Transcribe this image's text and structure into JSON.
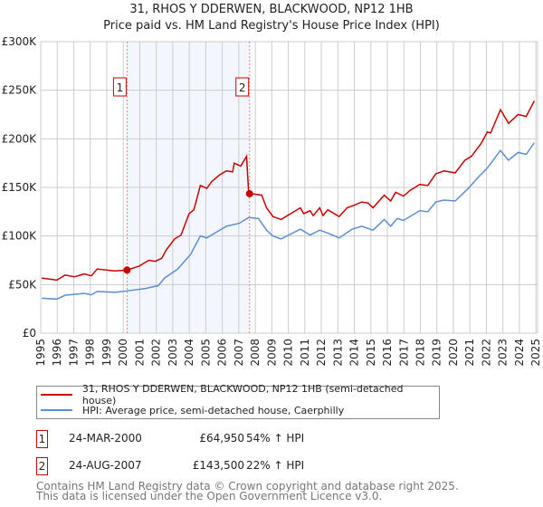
{
  "chart_data": {
    "type": "line",
    "title": "31, RHOS Y DDERWEN, BLACKWOOD, NP12 1HB",
    "subtitle": "Price paid vs. HM Land Registry's House Price Index (HPI)",
    "xlim": [
      1995,
      2025.1
    ],
    "ylim": [
      0,
      300000
    ],
    "yticks": [
      {
        "v": 0,
        "label": "£0"
      },
      {
        "v": 50000,
        "label": "£50K"
      },
      {
        "v": 100000,
        "label": "£100K"
      },
      {
        "v": 150000,
        "label": "£150K"
      },
      {
        "v": 200000,
        "label": "£200K"
      },
      {
        "v": 250000,
        "label": "£250K"
      },
      {
        "v": 300000,
        "label": "£300K"
      }
    ],
    "xticks": [
      "1995",
      "1996",
      "1997",
      "1998",
      "1999",
      "2000",
      "2001",
      "2002",
      "2003",
      "2004",
      "2005",
      "2006",
      "2007",
      "2008",
      "2009",
      "2010",
      "2011",
      "2012",
      "2013",
      "2014",
      "2015",
      "2016",
      "2017",
      "2018",
      "2019",
      "2020",
      "2021",
      "2022",
      "2023",
      "2024",
      "2025"
    ],
    "grid": true,
    "shaded_range": [
      2000.23,
      2007.65
    ],
    "series": [
      {
        "name": "31, RHOS Y DDERWEN, BLACKWOOD, NP12 1HB (semi-detached house)",
        "color": "#cc0000",
        "points": [
          [
            1995.06,
            56700
          ],
          [
            1995.98,
            54600
          ],
          [
            1996.47,
            59800
          ],
          [
            1997.05,
            58000
          ],
          [
            1997.64,
            61000
          ],
          [
            1998.07,
            59000
          ],
          [
            1998.42,
            66000
          ],
          [
            1999.49,
            64000
          ],
          [
            2000.23,
            64950
          ],
          [
            2000.96,
            69000
          ],
          [
            2001.55,
            75000
          ],
          [
            2001.94,
            74000
          ],
          [
            2002.33,
            77000
          ],
          [
            2002.62,
            86000
          ],
          [
            2003.11,
            97000
          ],
          [
            2003.5,
            101000
          ],
          [
            2003.99,
            123000
          ],
          [
            2004.28,
            127000
          ],
          [
            2004.67,
            152000
          ],
          [
            2005.06,
            149000
          ],
          [
            2005.36,
            156000
          ],
          [
            2005.85,
            163000
          ],
          [
            2006.24,
            167000
          ],
          [
            2006.63,
            166000
          ],
          [
            2006.72,
            175000
          ],
          [
            2007.12,
            172000
          ],
          [
            2007.47,
            182000
          ],
          [
            2007.6,
            143500
          ],
          [
            2008,
            143000
          ],
          [
            2008.39,
            142000
          ],
          [
            2008.68,
            129000
          ],
          [
            2009.07,
            120000
          ],
          [
            2009.56,
            117000
          ],
          [
            2010.14,
            123000
          ],
          [
            2010.73,
            129000
          ],
          [
            2010.93,
            123000
          ],
          [
            2011.32,
            126000
          ],
          [
            2011.51,
            121000
          ],
          [
            2011.9,
            129000
          ],
          [
            2012.1,
            121000
          ],
          [
            2012.39,
            127000
          ],
          [
            2013.08,
            120000
          ],
          [
            2013.56,
            129000
          ],
          [
            2014.05,
            132000
          ],
          [
            2014.44,
            135000
          ],
          [
            2014.83,
            134000
          ],
          [
            2015.13,
            129000
          ],
          [
            2015.81,
            142000
          ],
          [
            2016.2,
            136000
          ],
          [
            2016.5,
            145000
          ],
          [
            2016.98,
            141000
          ],
          [
            2017.38,
            147000
          ],
          [
            2017.96,
            153000
          ],
          [
            2018.45,
            152000
          ],
          [
            2018.94,
            164000
          ],
          [
            2019.43,
            167000
          ],
          [
            2020.11,
            165000
          ],
          [
            2020.7,
            178000
          ],
          [
            2021.09,
            182000
          ],
          [
            2021.67,
            195000
          ],
          [
            2022.06,
            207000
          ],
          [
            2022.26,
            206000
          ],
          [
            2022.85,
            230000
          ],
          [
            2023.34,
            216000
          ],
          [
            2023.92,
            225000
          ],
          [
            2024.41,
            223000
          ],
          [
            2024.9,
            239000
          ]
        ]
      },
      {
        "name": "HPI: Average price, semi-detached house, Caerphilly",
        "color": "#5b8fd4",
        "points": [
          [
            1995.06,
            36000
          ],
          [
            1995.98,
            35000
          ],
          [
            1996.47,
            39000
          ],
          [
            1997.64,
            41000
          ],
          [
            1998.07,
            39500
          ],
          [
            1998.42,
            43000
          ],
          [
            1999.49,
            42000
          ],
          [
            2000.23,
            43500
          ],
          [
            2001.35,
            46000
          ],
          [
            2002.13,
            49000
          ],
          [
            2002.52,
            57000
          ],
          [
            2003.3,
            66000
          ],
          [
            2004.08,
            81000
          ],
          [
            2004.67,
            100000
          ],
          [
            2005.06,
            98000
          ],
          [
            2005.65,
            104000
          ],
          [
            2006.24,
            110000
          ],
          [
            2007.02,
            113000
          ],
          [
            2007.6,
            119000
          ],
          [
            2008.19,
            118000
          ],
          [
            2008.68,
            106000
          ],
          [
            2009.07,
            100000
          ],
          [
            2009.56,
            97000
          ],
          [
            2010.14,
            102000
          ],
          [
            2010.73,
            107000
          ],
          [
            2011.32,
            101000
          ],
          [
            2011.9,
            106000
          ],
          [
            2012.39,
            103000
          ],
          [
            2013.08,
            98000
          ],
          [
            2013.86,
            107000
          ],
          [
            2014.44,
            110000
          ],
          [
            2015.13,
            106000
          ],
          [
            2015.81,
            117000
          ],
          [
            2016.2,
            110000
          ],
          [
            2016.59,
            118000
          ],
          [
            2016.98,
            116000
          ],
          [
            2017.96,
            126000
          ],
          [
            2018.45,
            125000
          ],
          [
            2018.94,
            135000
          ],
          [
            2019.43,
            137000
          ],
          [
            2020.11,
            136000
          ],
          [
            2020.9,
            149000
          ],
          [
            2021.48,
            160000
          ],
          [
            2022.06,
            170000
          ],
          [
            2022.85,
            188000
          ],
          [
            2023.34,
            178000
          ],
          [
            2023.92,
            186000
          ],
          [
            2024.41,
            184000
          ],
          [
            2024.9,
            196000
          ]
        ]
      }
    ],
    "sales": [
      {
        "label": "1",
        "x": 2000.23,
        "y": 64950
      },
      {
        "label": "2",
        "x": 2007.65,
        "y": 143500
      }
    ]
  },
  "legend": {
    "property": "31, RHOS Y DDERWEN, BLACKWOOD, NP12 1HB (semi-detached house)",
    "hpi": "HPI: Average price, semi-detached house, Caerphilly"
  },
  "transactions": [
    {
      "num": "1",
      "date": "24-MAR-2000",
      "price": "£64,950",
      "hpi": "54% ↑ HPI"
    },
    {
      "num": "2",
      "date": "24-AUG-2007",
      "price": "£143,500",
      "hpi": "22% ↑ HPI"
    }
  ],
  "footer": {
    "line1": "Contains HM Land Registry data © Crown copyright and database right 2025.",
    "line2": "This data is licensed under the Open Government Licence v3.0."
  }
}
